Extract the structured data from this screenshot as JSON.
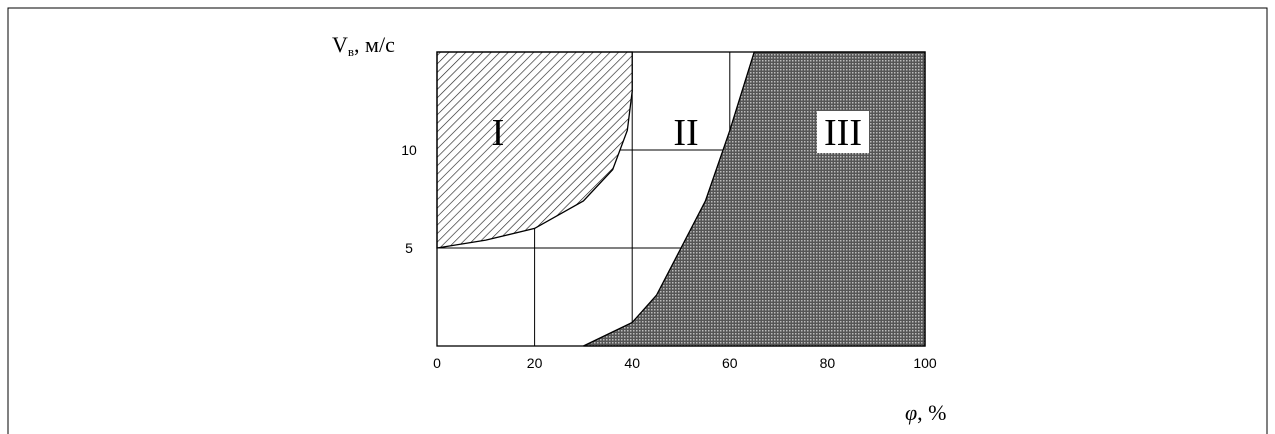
{
  "chart_data": {
    "type": "region",
    "y_label": [
      "V",
      "в",
      ", м/с"
    ],
    "x_label": [
      "φ",
      ", %"
    ],
    "xlim": [
      0,
      100
    ],
    "ylim": [
      0,
      15
    ],
    "xticks": [
      0,
      20,
      40,
      60,
      80,
      100
    ],
    "yticks": [
      5,
      10
    ],
    "grid": true,
    "regions": [
      {
        "name": "I",
        "x": [
          0,
          10,
          20,
          30,
          36,
          39,
          40,
          40
        ],
        "values": [
          5,
          5.4,
          6,
          7.4,
          9,
          11,
          13,
          15
        ]
      },
      {
        "name": "II"
      },
      {
        "name": "III",
        "x": [
          30,
          40,
          45,
          50,
          55,
          60,
          65
        ],
        "values": [
          0,
          1.2,
          2.6,
          5,
          7.4,
          11,
          15
        ]
      }
    ]
  }
}
